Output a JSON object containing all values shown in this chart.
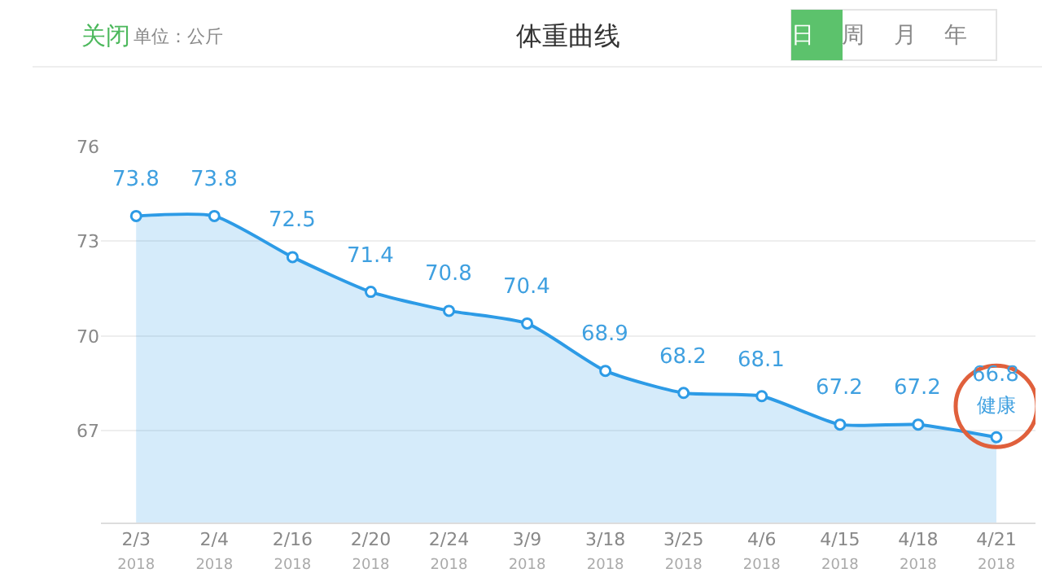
{
  "chart_data": {
    "type": "area",
    "title": "体重曲线",
    "categories": [
      "2/3\n2018",
      "2/4\n2018",
      "2/16\n2018",
      "2/20\n2018",
      "2/24\n2018",
      "3/9\n2018",
      "3/18\n2018",
      "3/25\n2018",
      "4/6\n2018",
      "4/15\n2018",
      "4/18\n2018",
      "4/21\n2018"
    ],
    "series": [
      {
        "color": "#2d9be6",
        "values": [
          73.8,
          73.8,
          72.5,
          71.4,
          70.8,
          70.4,
          68.9,
          68.2,
          68.1,
          67.2,
          67.2,
          66.8
        ]
      }
    ],
    "data_labels": true,
    "ylim": [
      64.1,
      76
    ],
    "yticks": [
      67,
      70,
      73,
      76
    ],
    "grid": "y",
    "marker": "circle",
    "line_style": "solid",
    "annotations": [
      "关闭",
      "单位：公斤",
      "日",
      "周",
      "月",
      "年",
      {
        "text": "健康",
        "x": "4/21\n2018",
        "y": 66.8
      }
    ]
  }
}
